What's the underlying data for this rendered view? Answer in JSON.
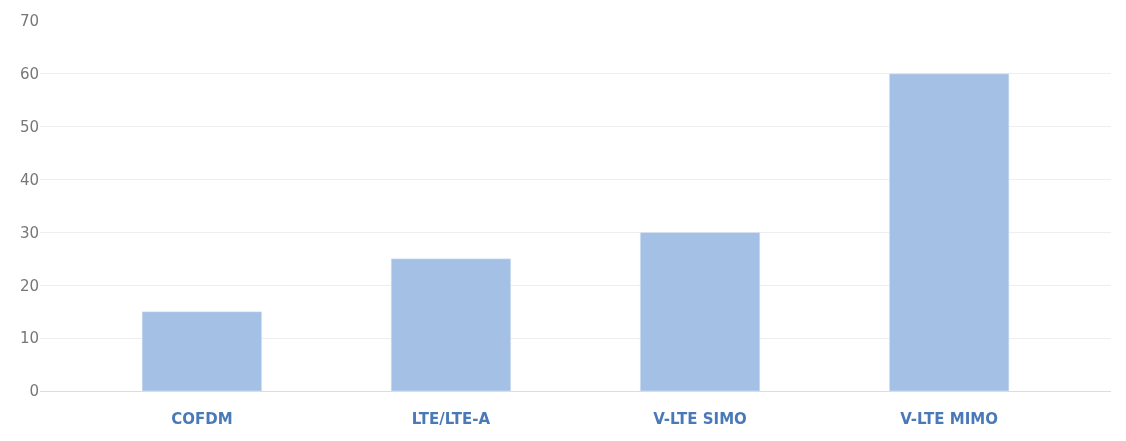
{
  "chart_data": {
    "type": "bar",
    "categories": [
      "COFDM",
      "LTE/LTE-A",
      "V-LTE SIMO",
      "V-LTE MIMO"
    ],
    "series": [
      {
        "color": "#a4c0e4",
        "values": [
          15,
          25,
          30,
          60
        ]
      }
    ],
    "ylim": [
      0,
      70
    ],
    "yticks": [
      0,
      10,
      20,
      30,
      40,
      50,
      60,
      70
    ],
    "grid": "y"
  }
}
